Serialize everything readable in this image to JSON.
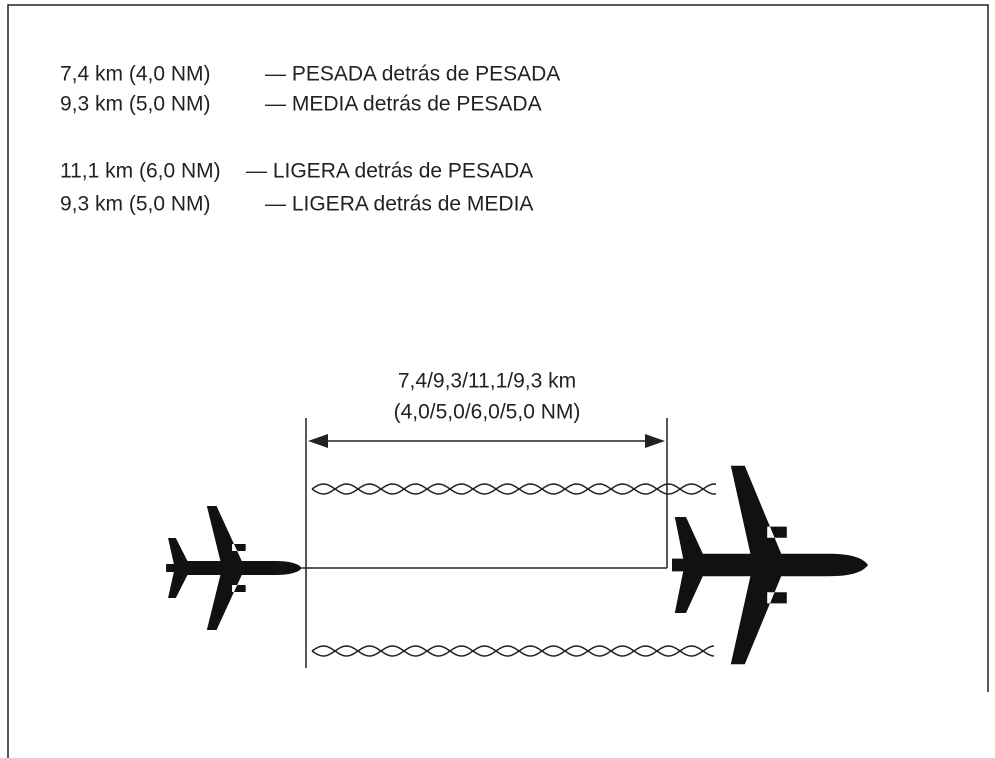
{
  "separations": [
    {
      "distance": "7,4 km (4,0 NM)",
      "description": "— PESADA detrás de PESADA"
    },
    {
      "distance": "9,3 km (5,0 NM)",
      "description": "— MEDIA detrás de PESADA"
    },
    {
      "distance": "11,1 km (6,0 NM)",
      "description": "— LIGERA detrás de PESADA"
    },
    {
      "distance": "9,3 km (5,0 NM)",
      "description": "— LIGERA detrás de MEDIA"
    }
  ],
  "diagram": {
    "label_line1": "7,4/9,3/11,1/9,3 km",
    "label_line2": "(4,0/5,0/6,0/5,0 NM)"
  }
}
